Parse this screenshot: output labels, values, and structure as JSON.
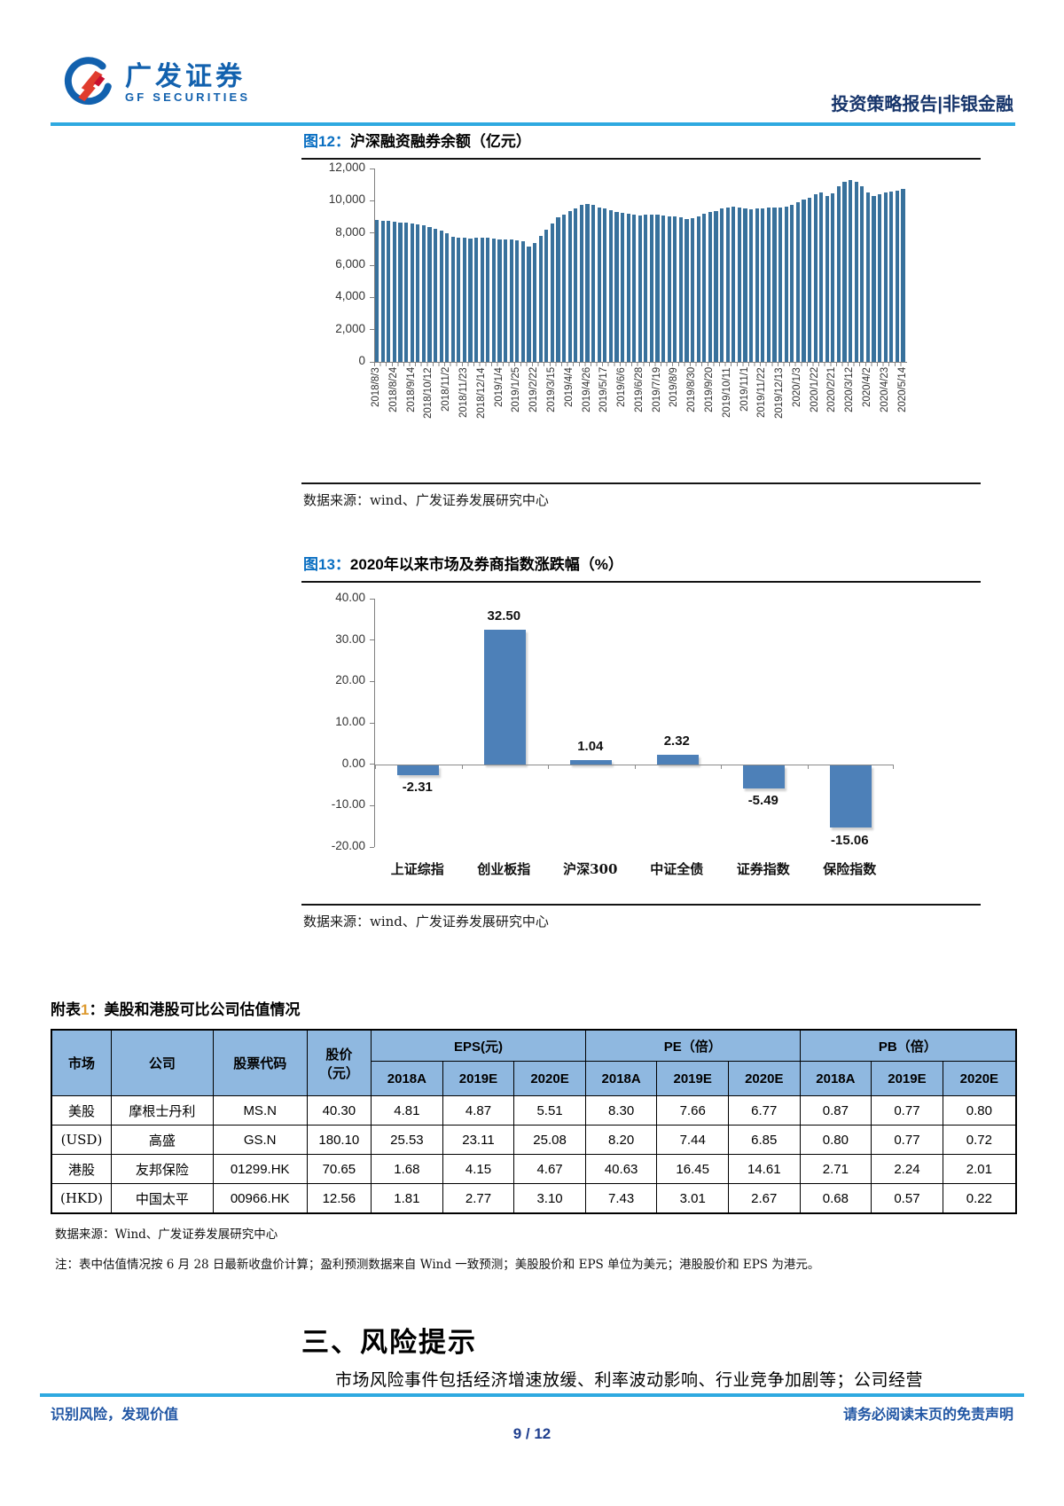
{
  "header": {
    "logo_cn": "广发证券",
    "logo_en": "GF SECURITIES",
    "report_type": "投资策略报告|非银金融"
  },
  "figure12": {
    "caption_no": "图12：",
    "caption_title": "沪深融资融券余额（亿元）",
    "source": "数据来源：wind、广发证券发展研究中心"
  },
  "figure13": {
    "caption_no": "图13：",
    "caption_title": "2020年以来市场及券商指数涨跌幅（%）",
    "source": "数据来源：wind、广发证券发展研究中心"
  },
  "chart_data": [
    {
      "type": "bar",
      "title": "沪深融资融券余额（亿元）",
      "xlabel": "",
      "ylabel": "",
      "ylim": [
        0,
        12000
      ],
      "ytick_step": 2000,
      "grid": false,
      "legend": "none",
      "bar_color": "#38719c",
      "label_every": 3,
      "x_labels_shown": [
        "2018/8/3",
        "2018/8/24",
        "2018/9/14",
        "2018/10/12",
        "2018/11/2",
        "2018/11/23",
        "2018/12/14",
        "2019/1/4",
        "2019/1/25",
        "2019/2/22",
        "2019/3/15",
        "2019/4/4",
        "2019/4/26",
        "2019/5/17",
        "2019/6/6",
        "2019/6/28",
        "2019/7/19",
        "2019/8/9",
        "2019/8/30",
        "2019/9/20",
        "2019/10/11",
        "2019/11/1",
        "2019/11/22",
        "2019/12/13",
        "2020/1/3",
        "2020/1/22",
        "2020/2/21",
        "2020/3/12",
        "2020/4/2",
        "2020/4/23",
        "2020/5/14"
      ],
      "values": [
        8800,
        8770,
        8740,
        8700,
        8660,
        8630,
        8600,
        8550,
        8500,
        8380,
        8280,
        8150,
        8000,
        7780,
        7720,
        7690,
        7670,
        7700,
        7730,
        7700,
        7660,
        7620,
        7600,
        7580,
        7560,
        7500,
        7150,
        7400,
        7800,
        8200,
        8600,
        8950,
        9150,
        9350,
        9550,
        9750,
        9820,
        9750,
        9600,
        9500,
        9400,
        9320,
        9250,
        9180,
        9120,
        9100,
        9120,
        9150,
        9130,
        9100,
        9050,
        9020,
        8950,
        8880,
        8900,
        9050,
        9180,
        9280,
        9380,
        9500,
        9600,
        9650,
        9600,
        9520,
        9480,
        9500,
        9530,
        9560,
        9580,
        9600,
        9650,
        9750,
        9900,
        10050,
        10200,
        10400,
        10500,
        10300,
        10450,
        10900,
        11150,
        11280,
        11150,
        10900,
        10500,
        10300,
        10400,
        10500,
        10550,
        10600,
        10750
      ]
    },
    {
      "type": "bar",
      "title": "2020年以来市场及券商指数涨跌幅（%）",
      "xlabel": "",
      "ylabel": "",
      "ylim": [
        -20,
        40
      ],
      "ytick_step": 10,
      "grid": false,
      "legend": "none",
      "bar_color": "#4d80b8",
      "categories": [
        "上证综指",
        "创业板指",
        "沪深300",
        "中证全债",
        "证券指数",
        "保险指数"
      ],
      "values": [
        -2.31,
        32.5,
        1.04,
        2.32,
        -5.49,
        -15.06
      ]
    }
  ],
  "table1": {
    "caption_prefix": "附表",
    "caption_no": "1",
    "caption_rest": "：美股和港股可比公司估值情况",
    "col_groups": [
      {
        "label": "市场",
        "rowspan": 2
      },
      {
        "label": "公司",
        "rowspan": 2
      },
      {
        "label": "股票代码",
        "rowspan": 2
      },
      {
        "label": "股价",
        "label2": "（元）",
        "rowspan": 2
      },
      {
        "label": "EPS(元)",
        "children": [
          "2018A",
          "2019E",
          "2020E"
        ]
      },
      {
        "label": "PE（倍）",
        "children": [
          "2018A",
          "2019E",
          "2020E"
        ]
      },
      {
        "label": "PB（倍）",
        "children": [
          "2018A",
          "2019E",
          "2020E"
        ]
      }
    ],
    "rows": [
      [
        "美股",
        "摩根士丹利",
        "MS.N",
        "40.30",
        "4.81",
        "4.87",
        "5.51",
        "8.30",
        "7.66",
        "6.77",
        "0.87",
        "0.77",
        "0.80"
      ],
      [
        "(USD)",
        "高盛",
        "GS.N",
        "180.10",
        "25.53",
        "23.11",
        "25.08",
        "8.20",
        "7.44",
        "6.85",
        "0.80",
        "0.77",
        "0.72"
      ],
      [
        "港股",
        "友邦保险",
        "01299.HK",
        "70.65",
        "1.68",
        "4.15",
        "4.67",
        "40.63",
        "16.45",
        "14.61",
        "2.71",
        "2.24",
        "2.01"
      ],
      [
        "(HKD)",
        "中国太平",
        "00966.HK",
        "12.56",
        "1.81",
        "2.77",
        "3.10",
        "7.43",
        "3.01",
        "2.67",
        "0.68",
        "0.57",
        "0.22"
      ]
    ],
    "source": "数据来源：Wind、广发证券发展研究中心",
    "note": "注：表中估值情况按 6 月 28 日最新收盘价计算；盈利预测数据来自 Wind 一致预测；美股股价和 EPS 单位为美元；港股股价和 EPS 为港元。"
  },
  "section": {
    "heading": "三、风险提示",
    "body": "市场风险事件包括经济增速放缓、利率波动影响、行业竞争加剧等；公司经营"
  },
  "footer": {
    "left": "识别风险，发现价值",
    "right": "请务必阅读末页的免责声明",
    "page": "9 / 12"
  }
}
